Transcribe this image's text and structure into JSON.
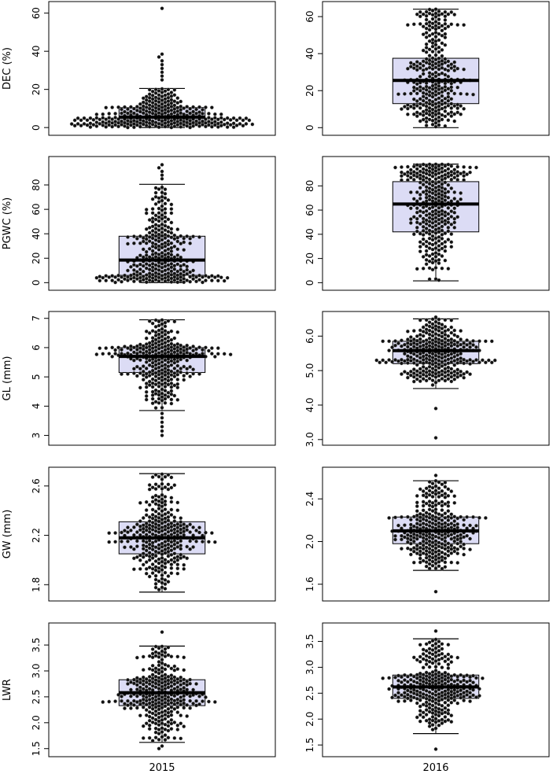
{
  "chart_data": {
    "type": "box-beeswarm",
    "grid": false,
    "legend": "none",
    "colors": {
      "box_fill": "#dcdcf5",
      "box_stroke": "#000000",
      "median": "#000000",
      "point_fill": "#111111",
      "point_stroke": "#aaaaaa"
    },
    "columns": [
      "2015",
      "2016"
    ],
    "rows": [
      {
        "ylabel": "DEC (%)",
        "panels": [
          {
            "year": "2015",
            "ylim": [
              -2,
              64
            ],
            "ticks": [
              0,
              20,
              40,
              60
            ],
            "tick_labels": [
              "0",
              "20",
              "40",
              "60"
            ],
            "whisker_low": 0,
            "q1": 2.5,
            "median": 5.5,
            "q3": 10.5,
            "whisker_high": 20.5,
            "dist": "dense",
            "outliers": [
              25,
              27,
              29,
              31,
              33,
              35,
              37,
              38.5,
              62.5
            ]
          },
          {
            "year": "2016",
            "ylim": [
              -2,
              66
            ],
            "ticks": [
              0,
              20,
              40,
              60
            ],
            "tick_labels": [
              "0",
              "20",
              "40",
              "60"
            ],
            "whisker_low": 0,
            "q1": 13,
            "median": 25.5,
            "q3": 37.5,
            "whisker_high": 64,
            "dist": "spread",
            "outliers": []
          }
        ]
      },
      {
        "ylabel": "PGWC (%)",
        "panels": [
          {
            "year": "2015",
            "ylim": [
              -3,
              100
            ],
            "ticks": [
              0,
              20,
              40,
              60,
              80
            ],
            "tick_labels": [
              "0",
              "20",
              "40",
              "60",
              "80"
            ],
            "whisker_low": 0,
            "q1": 6,
            "median": 18.5,
            "q3": 38,
            "whisker_high": 80.5,
            "dist": "dense",
            "outliers": [
              85,
              88,
              91,
              94,
              96.5
            ]
          },
          {
            "year": "2016",
            "ylim": [
              -3,
              101
            ],
            "ticks": [
              0,
              20,
              40,
              60,
              80
            ],
            "tick_labels": [
              "0",
              "20",
              "40",
              "60",
              "80"
            ],
            "whisker_low": 1.5,
            "q1": 42,
            "median": 65,
            "q3": 83.5,
            "whisker_high": 98,
            "dist": "spread",
            "outliers": []
          }
        ]
      },
      {
        "ylabel": "GL (mm)",
        "panels": [
          {
            "year": "2015",
            "ylim": [
              2.8,
              7.1
            ],
            "ticks": [
              3,
              4,
              5,
              6,
              7
            ],
            "tick_labels": [
              "3",
              "4",
              "5",
              "6",
              "7"
            ],
            "whisker_low": 3.85,
            "q1": 5.15,
            "median": 5.7,
            "q3": 6.0,
            "whisker_high": 6.95,
            "dist": "normal",
            "outliers": [
              3.0,
              3.15,
              3.3,
              3.45,
              3.6,
              3.75
            ]
          },
          {
            "year": "2016",
            "ylim": [
              2.95,
              6.6
            ],
            "ticks": [
              3.0,
              4.0,
              5.0,
              6.0
            ],
            "tick_labels": [
              "3.0",
              "4.0",
              "5.0",
              "6.0"
            ],
            "whisker_low": 4.48,
            "q1": 5.2,
            "median": 5.58,
            "q3": 5.85,
            "whisker_high": 6.5,
            "dist": "normal",
            "outliers": [
              3.05,
              3.9,
              6.55
            ]
          }
        ]
      },
      {
        "ylabel": "GW (mm)",
        "panels": [
          {
            "year": "2015",
            "ylim": [
              1.7,
              2.72
            ],
            "ticks": [
              1.8,
              2.2,
              2.6
            ],
            "tick_labels": [
              "1.8",
              "2.2",
              "2.6"
            ],
            "whisker_low": 1.74,
            "q1": 2.05,
            "median": 2.18,
            "q3": 2.31,
            "whisker_high": 2.7,
            "dist": "normal",
            "outliers": [
              1.76
            ]
          },
          {
            "year": "2016",
            "ylim": [
              1.48,
              2.66
            ],
            "ticks": [
              1.6,
              2.0,
              2.4
            ],
            "tick_labels": [
              "1.6",
              "2.0",
              "2.4"
            ],
            "whisker_low": 1.73,
            "q1": 1.98,
            "median": 2.1,
            "q3": 2.23,
            "whisker_high": 2.57,
            "dist": "normal",
            "outliers": [
              1.53,
              2.62
            ]
          }
        ]
      },
      {
        "ylabel": "LWR",
        "panels": [
          {
            "year": "2015",
            "ylim": [
              1.42,
              3.85
            ],
            "ticks": [
              1.5,
              2.0,
              2.5,
              3.0,
              3.5
            ],
            "tick_labels": [
              "1.5",
              "2.0",
              "2.5",
              "3.0",
              "3.5"
            ],
            "whisker_low": 1.62,
            "q1": 2.33,
            "median": 2.58,
            "q3": 2.83,
            "whisker_high": 3.48,
            "dist": "normal",
            "outliers": [
              1.5,
              1.55,
              3.75
            ]
          },
          {
            "year": "2016",
            "ylim": [
              1.35,
              3.78
            ],
            "ticks": [
              1.5,
              2.0,
              2.5,
              3.0,
              3.5
            ],
            "tick_labels": [
              "1.5",
              "2.0",
              "2.5",
              "3.0",
              "3.5"
            ],
            "whisker_low": 1.72,
            "q1": 2.4,
            "median": 2.62,
            "q3": 2.85,
            "whisker_high": 3.55,
            "dist": "normal",
            "outliers": [
              1.42,
              3.7
            ]
          }
        ]
      }
    ]
  }
}
